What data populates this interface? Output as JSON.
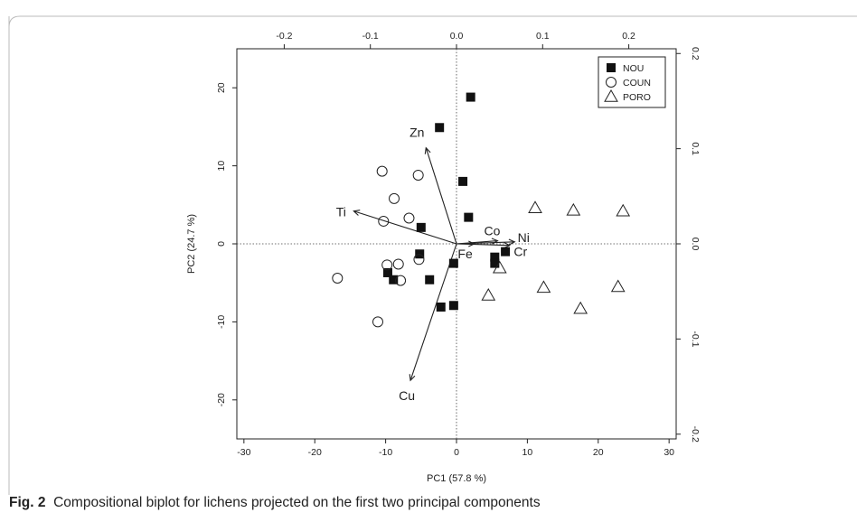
{
  "caption": {
    "label": "Fig. 2",
    "text": "Compositional biplot for lichens projected on the first two principal components"
  },
  "chart_data": {
    "type": "scatter",
    "xlabel": "PC1 (57.8 %)",
    "ylabel": "PC2 (24.7 %)",
    "xlim": [
      -31,
      31
    ],
    "ylim": [
      -25,
      25
    ],
    "x_ticks": [
      -30,
      -20,
      -10,
      0,
      10,
      20,
      30
    ],
    "y_ticks": [
      -20,
      -10,
      0,
      10,
      20
    ],
    "x_tick_labels": [
      "-30",
      "-20",
      "-10",
      "0",
      "10",
      "20",
      "30"
    ],
    "y_tick_labels": [
      "-20",
      "-10",
      "0",
      "10",
      "20"
    ],
    "top_axis": {
      "lim": [
        -0.255,
        0.255
      ],
      "ticks": [
        -0.2,
        -0.1,
        0.0,
        0.1,
        0.2
      ],
      "tick_labels": [
        "-0.2",
        "-0.1",
        "0.0",
        "0.1",
        "0.2"
      ]
    },
    "right_axis": {
      "lim": [
        -0.205,
        0.205
      ],
      "ticks": [
        -0.2,
        -0.1,
        0.0,
        0.1,
        0.2
      ],
      "tick_labels": [
        "-0.2",
        "-0.1",
        "0.0",
        "0.1",
        "0.2"
      ]
    },
    "legend_position": "top-right",
    "series": [
      {
        "name": "NOU",
        "marker": "filled-square",
        "points": [
          [
            2,
            18.8
          ],
          [
            -2.4,
            14.9
          ],
          [
            0.9,
            8
          ],
          [
            1.7,
            3.4
          ],
          [
            -5,
            2.1
          ],
          [
            -5.2,
            -1.3
          ],
          [
            -0.4,
            -2.5
          ],
          [
            5.4,
            -1.7
          ],
          [
            5.4,
            -2.5
          ],
          [
            6.9,
            -1
          ],
          [
            -9.7,
            -3.7
          ],
          [
            -8.9,
            -4.6
          ],
          [
            -3.8,
            -4.6
          ],
          [
            -2.2,
            -8.1
          ],
          [
            -0.4,
            -7.9
          ]
        ]
      },
      {
        "name": "COUN",
        "marker": "open-circle",
        "points": [
          [
            -10.5,
            9.3
          ],
          [
            -5.4,
            8.8
          ],
          [
            -8.8,
            5.8
          ],
          [
            -10.3,
            2.9
          ],
          [
            -6.7,
            3.3
          ],
          [
            -5.3,
            -2
          ],
          [
            -9.8,
            -2.7
          ],
          [
            -8.2,
            -2.6
          ],
          [
            -7.9,
            -4.7
          ],
          [
            -16.8,
            -4.4
          ],
          [
            -11.1,
            -10
          ]
        ]
      },
      {
        "name": "PORO",
        "marker": "open-triangle",
        "points": [
          [
            11.1,
            4.6
          ],
          [
            16.5,
            4.3
          ],
          [
            23.5,
            4.2
          ],
          [
            6.1,
            -3.1
          ],
          [
            4.5,
            -6.6
          ],
          [
            12.3,
            -5.6
          ],
          [
            17.5,
            -8.3
          ],
          [
            22.8,
            -5.5
          ]
        ]
      }
    ],
    "loadings": [
      {
        "label": "Zn",
        "x": -4.3,
        "y": 12.3
      },
      {
        "label": "Ti",
        "x": -14.5,
        "y": 4.2
      },
      {
        "label": "Co",
        "x": 5.8,
        "y": 0.4
      },
      {
        "label": "Ni",
        "x": 8.2,
        "y": 0.25
      },
      {
        "label": "Cr",
        "x": 7.5,
        "y": -0.2
      },
      {
        "label": "Fe",
        "x": 2.5,
        "y": 0
      },
      {
        "label": "Cu",
        "x": -6.5,
        "y": -17.5
      }
    ]
  }
}
